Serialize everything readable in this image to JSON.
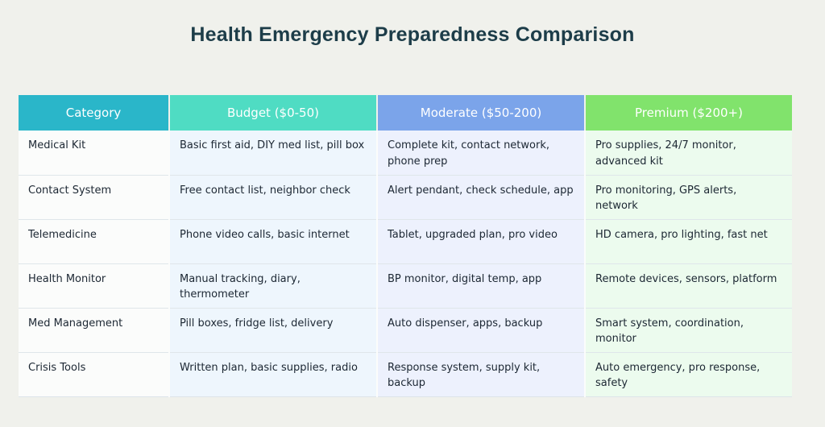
{
  "page": {
    "title": "Health Emergency Preparedness Comparison",
    "background_color": "#f0f1ec",
    "title_color": "#1d3d49"
  },
  "table": {
    "columns": [
      {
        "label": "Category",
        "header_bg": "#2ab6c9",
        "cell_bg": "#fbfcfb"
      },
      {
        "label": "Budget ($0-50)",
        "header_bg": "#4fdcc3",
        "cell_bg": "#eef6fd"
      },
      {
        "label": "Moderate ($50-200)",
        "header_bg": "#7ba4ea",
        "cell_bg": "#edf1fd"
      },
      {
        "label": "Premium ($200+)",
        "header_bg": "#81e36c",
        "cell_bg": "#ecfbee"
      }
    ],
    "rows": [
      {
        "category": "Medical Kit",
        "budget": "Basic first aid, DIY med list, pill box",
        "moderate": "Complete kit, contact network, phone prep",
        "premium": "Pro supplies, 24/7 monitor, advanced kit"
      },
      {
        "category": "Contact System",
        "budget": "Free contact list, neighbor check",
        "moderate": "Alert pendant, check schedule, app",
        "premium": "Pro monitoring, GPS alerts, network"
      },
      {
        "category": "Telemedicine",
        "budget": "Phone video calls, basic internet",
        "moderate": "Tablet, upgraded plan, pro video",
        "premium": "HD camera, pro lighting, fast net"
      },
      {
        "category": "Health Monitor",
        "budget": "Manual tracking, diary, thermometer",
        "moderate": "BP monitor, digital temp, app",
        "premium": "Remote devices, sensors, platform"
      },
      {
        "category": "Med Management",
        "budget": "Pill boxes, fridge list, delivery",
        "moderate": "Auto dispenser, apps, backup",
        "premium": "Smart system, coordination, monitor"
      },
      {
        "category": "Crisis Tools",
        "budget": "Written plan, basic supplies, radio",
        "moderate": "Response system, supply kit, backup",
        "premium": "Auto emergency, pro response, safety"
      }
    ]
  },
  "chart_data": {
    "type": "table",
    "title": "Health Emergency Preparedness Comparison",
    "columns": [
      "Category",
      "Budget ($0-50)",
      "Moderate ($50-200)",
      "Premium ($200+)"
    ],
    "rows": [
      [
        "Medical Kit",
        "Basic first aid, DIY med list, pill box",
        "Complete kit, contact network, phone prep",
        "Pro supplies, 24/7 monitor, advanced kit"
      ],
      [
        "Contact System",
        "Free contact list, neighbor check",
        "Alert pendant, check schedule, app",
        "Pro monitoring, GPS alerts, network"
      ],
      [
        "Telemedicine",
        "Phone video calls, basic internet",
        "Tablet, upgraded plan, pro video",
        "HD camera, pro lighting, fast net"
      ],
      [
        "Health Monitor",
        "Manual tracking, diary, thermometer",
        "BP monitor, digital temp, app",
        "Remote devices, sensors, platform"
      ],
      [
        "Med Management",
        "Pill boxes, fridge list, delivery",
        "Auto dispenser, apps, backup",
        "Smart system, coordination, monitor"
      ],
      [
        "Crisis Tools",
        "Written plan, basic supplies, radio",
        "Response system, supply kit, backup",
        "Auto emergency, pro response, safety"
      ]
    ],
    "header_colors": [
      "#2ab6c9",
      "#4fdcc3",
      "#7ba4ea",
      "#81e36c"
    ],
    "column_cell_colors": [
      "#fbfcfb",
      "#eef6fd",
      "#edf1fd",
      "#ecfbee"
    ],
    "legend_position": "none",
    "grid": true
  }
}
